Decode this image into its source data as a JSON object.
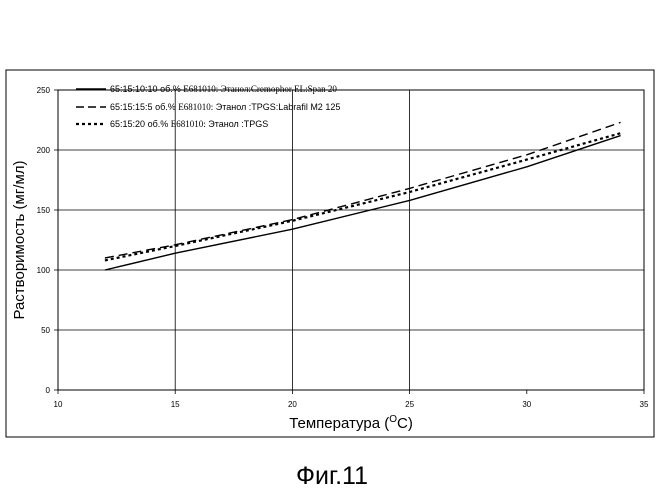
{
  "chart_data": {
    "type": "line",
    "title": "",
    "xlabel": "Температура (",
    "xlabel_sup": "O",
    "xlabel_end": "C)",
    "ylabel": "Растворимость (мг/мл)",
    "xlim": [
      10,
      35
    ],
    "ylim": [
      0,
      250
    ],
    "xticks": [
      "10",
      "15",
      "20",
      "25",
      "30",
      "35"
    ],
    "yticks": [
      "0",
      "50",
      "100",
      "150",
      "200",
      "250"
    ],
    "vertical_grid_x": [
      15,
      20,
      25
    ],
    "horizontal_grid_y": [
      50,
      100,
      150,
      200,
      250
    ],
    "legend_position": "top-left",
    "series": [
      {
        "ratio": "65:15:10:10",
        "unit": "об.%",
        "compound": "E681010:",
        "components": "Этанол:Cremophor EL:Span 20",
        "style": "solid",
        "x": [
          12,
          15,
          20,
          25,
          30,
          34
        ],
        "y": [
          100,
          114,
          134,
          158,
          186,
          212
        ]
      },
      {
        "ratio": "65:15:15:5",
        "unit": "об.%",
        "compound": "E681010:",
        "components": "Этанол :TPGS:Labrafil M2 125",
        "style": "dashed",
        "x": [
          12,
          15,
          20,
          25,
          30,
          34
        ],
        "y": [
          110,
          121,
          142,
          168,
          196,
          223
        ]
      },
      {
        "ratio": "65:15:20",
        "unit": "об.%",
        "compound": "E681010:",
        "components": "Этанол :TPGS",
        "style": "dotted",
        "x": [
          12,
          15,
          20,
          25,
          30,
          34
        ],
        "y": [
          108,
          120,
          141,
          165,
          192,
          214
        ]
      }
    ]
  },
  "caption": "Фиг.11"
}
